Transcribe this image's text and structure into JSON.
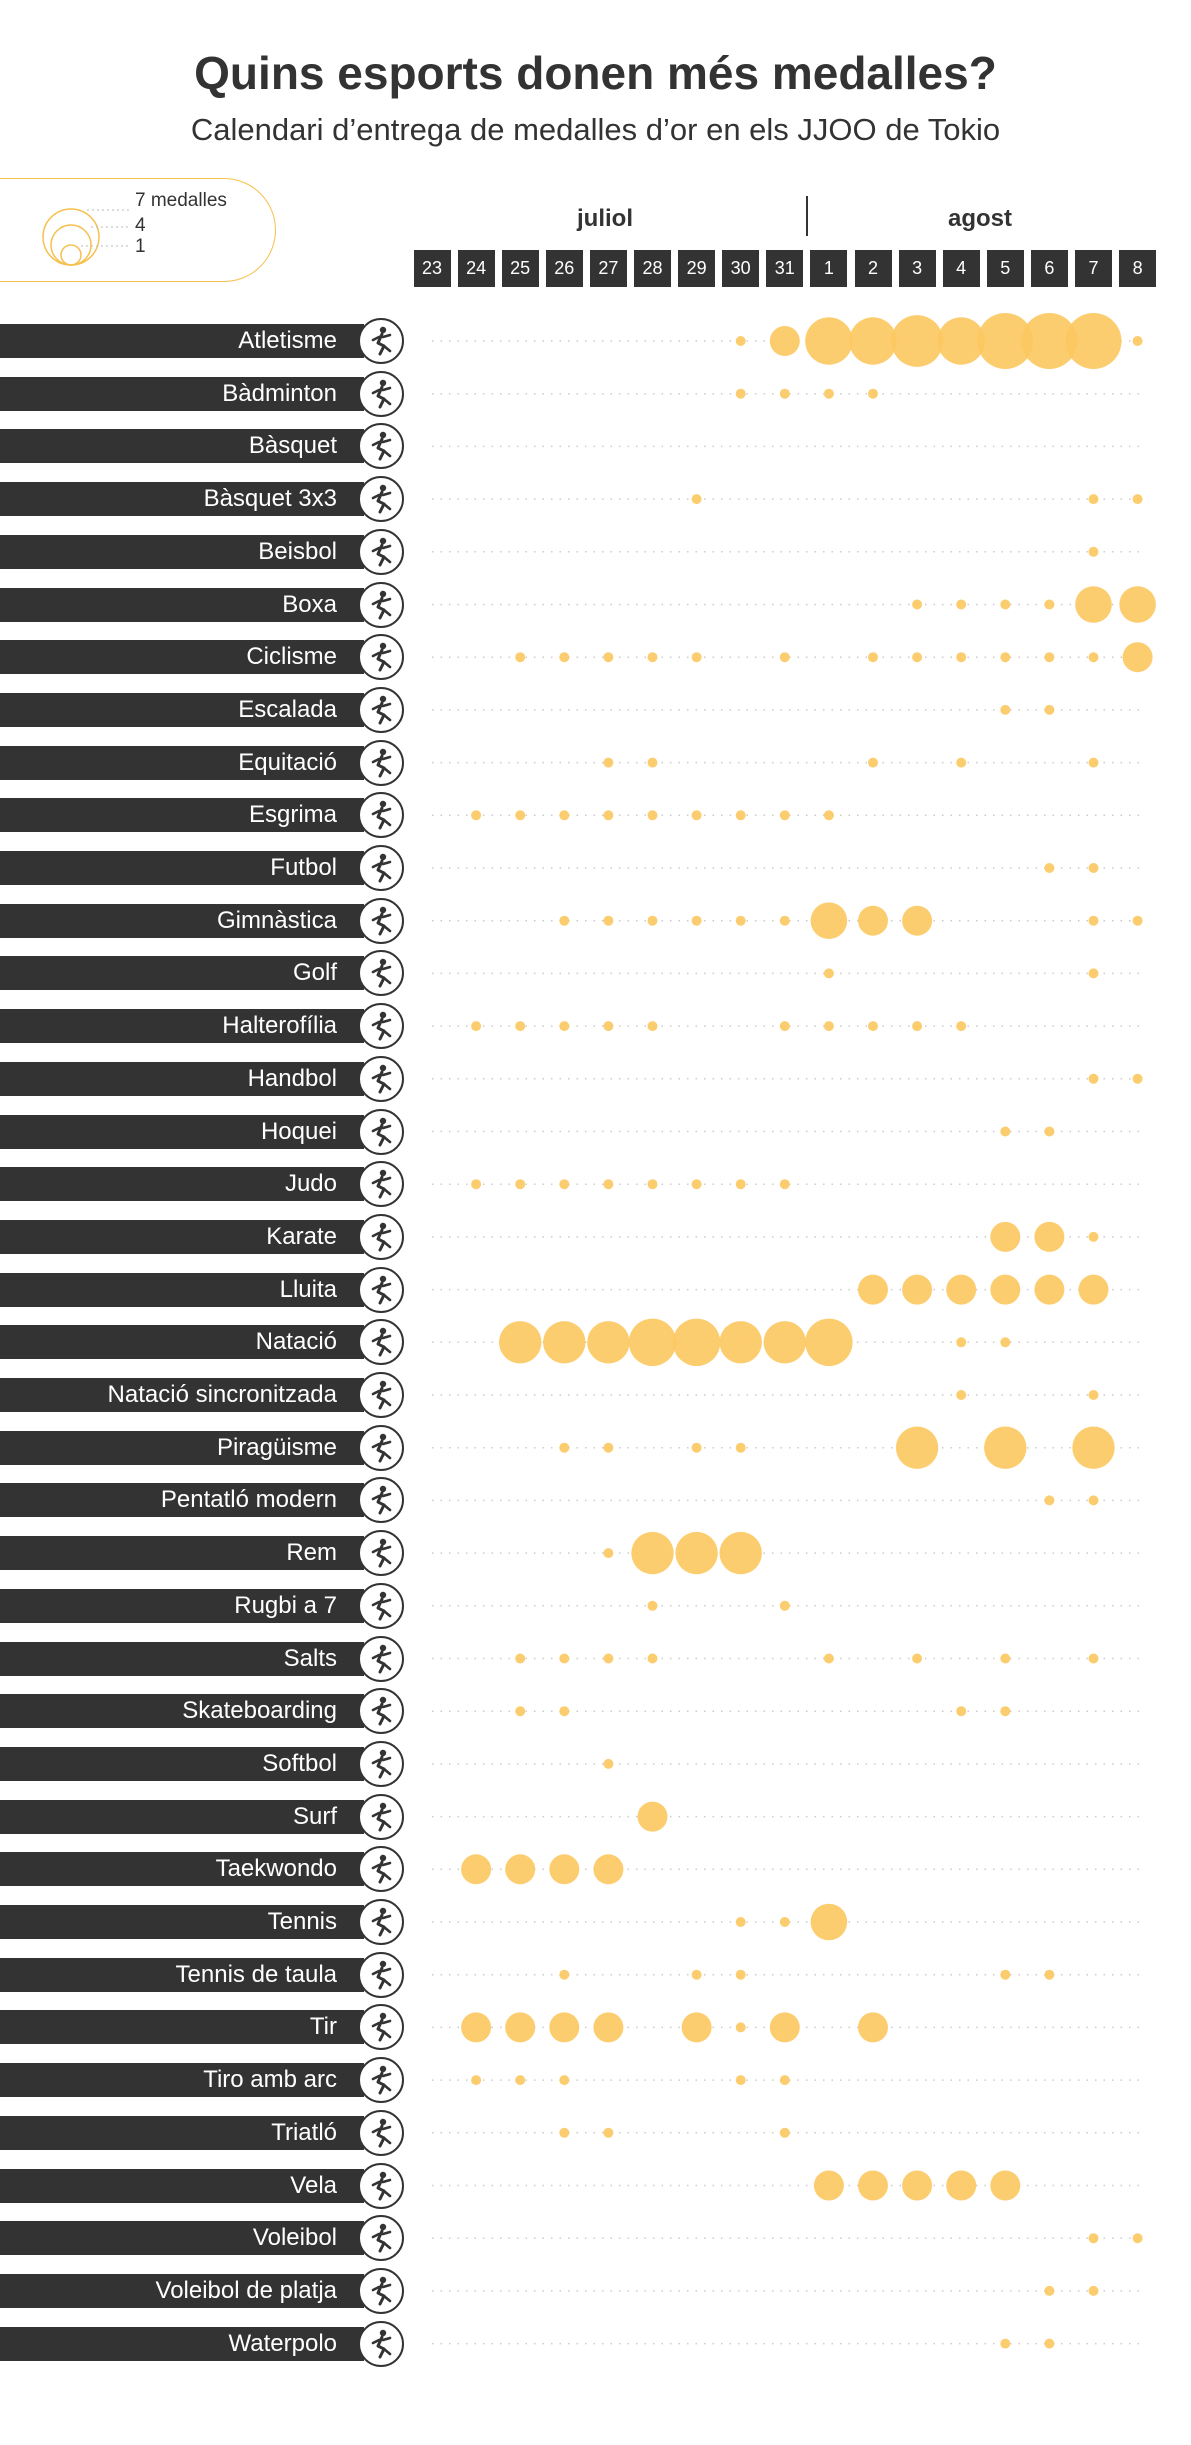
{
  "title": "Quins esports donen més medalles?",
  "subtitle": "Calendari d’entrega de medalles d’or en els JJOO de Tokio",
  "legend": {
    "items": [
      "7 medalles",
      "4",
      "1"
    ]
  },
  "months": [
    "juliol",
    "agost"
  ],
  "days": [
    "23",
    "24",
    "25",
    "26",
    "27",
    "28",
    "29",
    "30",
    "31",
    "1",
    "2",
    "3",
    "4",
    "5",
    "6",
    "7",
    "8"
  ],
  "colors": {
    "bubble": "#fcc85f",
    "bar": "#333333",
    "dots": "#cccccc"
  },
  "chart_data": {
    "type": "scatter",
    "encoding": "bubble size = gold medals awarded that day",
    "title": "Quins esports donen més medalles?",
    "subtitle": "Calendari d’entrega de medalles d’or en els JJOO de Tokio",
    "x_categories": [
      "23",
      "24",
      "25",
      "26",
      "27",
      "28",
      "29",
      "30",
      "31",
      "1",
      "2",
      "3",
      "4",
      "5",
      "6",
      "7",
      "8"
    ],
    "series": [
      {
        "name": "Atletisme",
        "icon": "athletics-icon",
        "medals": [
          0,
          0,
          0,
          0,
          0,
          0,
          0,
          1,
          2,
          5,
          5,
          6,
          5,
          7,
          7,
          7,
          1
        ]
      },
      {
        "name": "Bàdminton",
        "icon": "badminton-icon",
        "medals": [
          0,
          0,
          0,
          0,
          0,
          0,
          0,
          1,
          1,
          1,
          1,
          0,
          0,
          0,
          0,
          0,
          0
        ]
      },
      {
        "name": "Bàsquet",
        "icon": "basketball-icon",
        "medals": [
          0,
          0,
          0,
          0,
          0,
          0,
          0,
          0,
          0,
          0,
          0,
          0,
          0,
          0,
          0,
          0,
          0
        ]
      },
      {
        "name": "Bàsquet 3x3",
        "icon": "basketball-3x3-icon",
        "medals": [
          0,
          0,
          0,
          0,
          0,
          0,
          1,
          0,
          0,
          0,
          0,
          0,
          0,
          0,
          0,
          1,
          1
        ]
      },
      {
        "name": "Beisbol",
        "icon": "baseball-icon",
        "medals": [
          0,
          0,
          0,
          0,
          0,
          0,
          0,
          0,
          0,
          0,
          0,
          0,
          0,
          0,
          0,
          1,
          0
        ]
      },
      {
        "name": "Boxa",
        "icon": "boxing-icon",
        "medals": [
          0,
          0,
          0,
          0,
          0,
          0,
          0,
          0,
          0,
          0,
          0,
          1,
          1,
          1,
          1,
          3,
          3
        ]
      },
      {
        "name": "Ciclisme",
        "icon": "cycling-icon",
        "medals": [
          0,
          0,
          1,
          1,
          1,
          1,
          1,
          0,
          1,
          0,
          1,
          1,
          1,
          1,
          1,
          1,
          2
        ]
      },
      {
        "name": "Escalada",
        "icon": "climbing-icon",
        "medals": [
          0,
          0,
          0,
          0,
          0,
          0,
          0,
          0,
          0,
          0,
          0,
          0,
          0,
          1,
          1,
          0,
          0
        ]
      },
      {
        "name": "Equitació",
        "icon": "equestrian-icon",
        "medals": [
          0,
          0,
          0,
          0,
          1,
          1,
          0,
          0,
          0,
          0,
          1,
          0,
          1,
          0,
          0,
          1,
          0
        ]
      },
      {
        "name": "Esgrima",
        "icon": "fencing-icon",
        "medals": [
          0,
          1,
          1,
          1,
          1,
          1,
          1,
          1,
          1,
          1,
          0,
          0,
          0,
          0,
          0,
          0,
          0
        ]
      },
      {
        "name": "Futbol",
        "icon": "football-icon",
        "medals": [
          0,
          0,
          0,
          0,
          0,
          0,
          0,
          0,
          0,
          0,
          0,
          0,
          0,
          0,
          1,
          1,
          0
        ]
      },
      {
        "name": "Gimnàstica",
        "icon": "gymnastics-icon",
        "medals": [
          0,
          0,
          0,
          1,
          1,
          1,
          1,
          1,
          1,
          3,
          2,
          2,
          0,
          0,
          0,
          1,
          1
        ]
      },
      {
        "name": "Golf",
        "icon": "golf-icon",
        "medals": [
          0,
          0,
          0,
          0,
          0,
          0,
          0,
          0,
          0,
          1,
          0,
          0,
          0,
          0,
          0,
          1,
          0
        ]
      },
      {
        "name": "Halterofília",
        "icon": "weightlifting-icon",
        "medals": [
          0,
          1,
          1,
          1,
          1,
          1,
          0,
          0,
          1,
          1,
          1,
          1,
          1,
          0,
          0,
          0,
          0
        ]
      },
      {
        "name": "Handbol",
        "icon": "handball-icon",
        "medals": [
          0,
          0,
          0,
          0,
          0,
          0,
          0,
          0,
          0,
          0,
          0,
          0,
          0,
          0,
          0,
          1,
          1
        ]
      },
      {
        "name": "Hoquei",
        "icon": "hockey-icon",
        "medals": [
          0,
          0,
          0,
          0,
          0,
          0,
          0,
          0,
          0,
          0,
          0,
          0,
          0,
          1,
          1,
          0,
          0
        ]
      },
      {
        "name": "Judo",
        "icon": "judo-icon",
        "medals": [
          0,
          1,
          1,
          1,
          1,
          1,
          1,
          1,
          1,
          0,
          0,
          0,
          0,
          0,
          0,
          0,
          0
        ]
      },
      {
        "name": "Karate",
        "icon": "karate-icon",
        "medals": [
          0,
          0,
          0,
          0,
          0,
          0,
          0,
          0,
          0,
          0,
          0,
          0,
          0,
          2,
          2,
          1,
          0
        ]
      },
      {
        "name": "Lluita",
        "icon": "wrestling-icon",
        "medals": [
          0,
          0,
          0,
          0,
          0,
          0,
          0,
          0,
          0,
          0,
          2,
          2,
          2,
          2,
          2,
          2,
          0
        ]
      },
      {
        "name": "Natació",
        "icon": "swimming-icon",
        "medals": [
          0,
          0,
          4,
          4,
          4,
          5,
          5,
          4,
          4,
          5,
          0,
          0,
          1,
          1,
          0,
          0,
          0
        ]
      },
      {
        "name": "Natació sincronitzada",
        "icon": "artistic-swimming-icon",
        "medals": [
          0,
          0,
          0,
          0,
          0,
          0,
          0,
          0,
          0,
          0,
          0,
          0,
          1,
          0,
          0,
          1,
          0
        ]
      },
      {
        "name": "Piragüisme",
        "icon": "canoe-icon",
        "medals": [
          0,
          0,
          0,
          1,
          1,
          0,
          1,
          1,
          0,
          0,
          0,
          4,
          0,
          4,
          0,
          4,
          0
        ]
      },
      {
        "name": "Pentatló modern",
        "icon": "modern-pentathlon-icon",
        "medals": [
          0,
          0,
          0,
          0,
          0,
          0,
          0,
          0,
          0,
          0,
          0,
          0,
          0,
          0,
          1,
          1,
          0
        ]
      },
      {
        "name": "Rem",
        "icon": "rowing-icon",
        "medals": [
          0,
          0,
          0,
          0,
          1,
          4,
          4,
          4,
          0,
          0,
          0,
          0,
          0,
          0,
          0,
          0,
          0
        ]
      },
      {
        "name": "Rugbi a 7",
        "icon": "rugby-icon",
        "medals": [
          0,
          0,
          0,
          0,
          0,
          1,
          0,
          0,
          1,
          0,
          0,
          0,
          0,
          0,
          0,
          0,
          0
        ]
      },
      {
        "name": "Salts",
        "icon": "diving-icon",
        "medals": [
          0,
          0,
          1,
          1,
          1,
          1,
          0,
          0,
          0,
          1,
          0,
          1,
          0,
          1,
          0,
          1,
          0
        ]
      },
      {
        "name": "Skateboarding",
        "icon": "skateboarding-icon",
        "medals": [
          0,
          0,
          1,
          1,
          0,
          0,
          0,
          0,
          0,
          0,
          0,
          0,
          1,
          1,
          0,
          0,
          0
        ]
      },
      {
        "name": "Softbol",
        "icon": "softball-icon",
        "medals": [
          0,
          0,
          0,
          0,
          1,
          0,
          0,
          0,
          0,
          0,
          0,
          0,
          0,
          0,
          0,
          0,
          0
        ]
      },
      {
        "name": "Surf",
        "icon": "surfing-icon",
        "medals": [
          0,
          0,
          0,
          0,
          0,
          2,
          0,
          0,
          0,
          0,
          0,
          0,
          0,
          0,
          0,
          0,
          0
        ]
      },
      {
        "name": "Taekwondo",
        "icon": "taekwondo-icon",
        "medals": [
          0,
          2,
          2,
          2,
          2,
          0,
          0,
          0,
          0,
          0,
          0,
          0,
          0,
          0,
          0,
          0,
          0
        ]
      },
      {
        "name": "Tennis",
        "icon": "tennis-icon",
        "medals": [
          0,
          0,
          0,
          0,
          0,
          0,
          0,
          1,
          1,
          3,
          0,
          0,
          0,
          0,
          0,
          0,
          0
        ]
      },
      {
        "name": "Tennis de taula",
        "icon": "table-tennis-icon",
        "medals": [
          0,
          0,
          0,
          1,
          0,
          0,
          1,
          1,
          0,
          0,
          0,
          0,
          0,
          1,
          1,
          0,
          0
        ]
      },
      {
        "name": "Tir",
        "icon": "shooting-icon",
        "medals": [
          0,
          2,
          2,
          2,
          2,
          0,
          2,
          1,
          2,
          0,
          2,
          0,
          0,
          0,
          0,
          0,
          0
        ]
      },
      {
        "name": "Tiro amb arc",
        "icon": "archery-icon",
        "medals": [
          0,
          1,
          1,
          1,
          0,
          0,
          0,
          1,
          1,
          0,
          0,
          0,
          0,
          0,
          0,
          0,
          0
        ]
      },
      {
        "name": "Triatló",
        "icon": "triathlon-icon",
        "medals": [
          0,
          0,
          0,
          1,
          1,
          0,
          0,
          0,
          1,
          0,
          0,
          0,
          0,
          0,
          0,
          0,
          0
        ]
      },
      {
        "name": "Vela",
        "icon": "sailing-icon",
        "medals": [
          0,
          0,
          0,
          0,
          0,
          0,
          0,
          0,
          0,
          2,
          2,
          2,
          2,
          2,
          0,
          0,
          0
        ]
      },
      {
        "name": "Voleibol",
        "icon": "volleyball-icon",
        "medals": [
          0,
          0,
          0,
          0,
          0,
          0,
          0,
          0,
          0,
          0,
          0,
          0,
          0,
          0,
          0,
          1,
          1
        ]
      },
      {
        "name": "Voleibol de platja",
        "icon": "beach-volleyball-icon",
        "medals": [
          0,
          0,
          0,
          0,
          0,
          0,
          0,
          0,
          0,
          0,
          0,
          0,
          0,
          0,
          1,
          1,
          0
        ]
      },
      {
        "name": "Waterpolo",
        "icon": "water-polo-icon",
        "medals": [
          0,
          0,
          0,
          0,
          0,
          0,
          0,
          0,
          0,
          0,
          0,
          0,
          0,
          1,
          1,
          0,
          0
        ]
      }
    ]
  }
}
